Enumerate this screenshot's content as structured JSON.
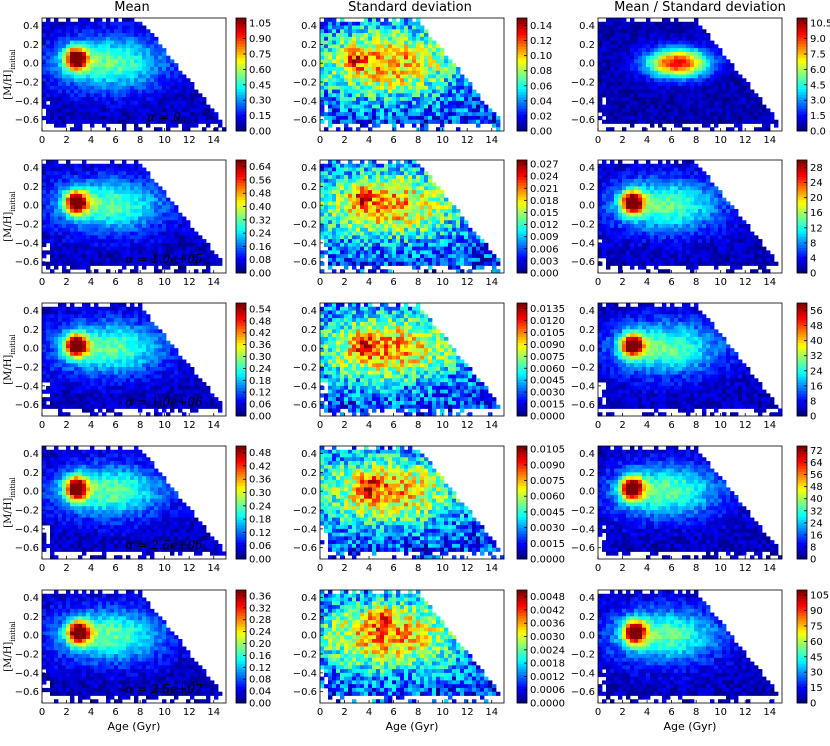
{
  "figure": {
    "column_titles": [
      "Mean",
      "Standard deviation",
      "Mean / Standard deviation"
    ],
    "row_alpha_labels": [
      "α = 0",
      "α = 1.0e+05",
      "α = 1.0e+06",
      "α = 2.5e+06",
      "α = 2.5e+07"
    ],
    "ylabel": "[M/H]",
    "ylabel_sub": "initial",
    "xlabel": "Age (Gyr)",
    "x_ticks": [
      "0",
      "2",
      "4",
      "6",
      "8",
      "10",
      "12",
      "14"
    ],
    "y_ticks": [
      "0.4",
      "0.2",
      "0.0",
      "−0.2",
      "−0.4",
      "−0.6"
    ]
  },
  "chart_data": [
    {
      "type": "heatmap",
      "row": 0,
      "col": 0,
      "title": "Mean",
      "panel_label": "α = 0",
      "xlabel": "",
      "ylabel": "[M/H]initial",
      "xlim": [
        0,
        15
      ],
      "ylim": [
        -0.72,
        0.48
      ],
      "colorbar_ticks": [
        "0.00",
        "0.15",
        "0.30",
        "0.45",
        "0.60",
        "0.75",
        "0.90",
        "1.05"
      ],
      "colorbar_max": 1.1,
      "colormap": "jet",
      "peak_age": 2.8,
      "peak_mh": 0.05
    },
    {
      "type": "heatmap",
      "row": 0,
      "col": 1,
      "title": "Standard deviation",
      "panel_label": "",
      "xlim": [
        0,
        15
      ],
      "ylim": [
        -0.72,
        0.48
      ],
      "colorbar_ticks": [
        "0.00",
        "0.02",
        "0.04",
        "0.06",
        "0.08",
        "0.10",
        "0.12",
        "0.14"
      ],
      "colorbar_max": 0.15,
      "colormap": "jet",
      "peak_age": 2.8,
      "peak_mh": 0.05
    },
    {
      "type": "heatmap",
      "row": 0,
      "col": 2,
      "title": "Mean / Standard deviation",
      "panel_label": "",
      "xlim": [
        0,
        15
      ],
      "ylim": [
        -0.72,
        0.48
      ],
      "colorbar_ticks": [
        "0.0",
        "1.5",
        "3.0",
        "4.5",
        "6.0",
        "7.5",
        "9.0",
        "10.5"
      ],
      "colorbar_max": 11.0,
      "colormap": "jet",
      "peak_age": 6.5,
      "peak_mh": 0.05
    },
    {
      "type": "heatmap",
      "row": 1,
      "col": 0,
      "panel_label": "α = 1.0e+05",
      "xlim": [
        0,
        15
      ],
      "ylim": [
        -0.72,
        0.48
      ],
      "colorbar_ticks": [
        "0.00",
        "0.08",
        "0.16",
        "0.24",
        "0.32",
        "0.40",
        "0.48",
        "0.56",
        "0.64"
      ],
      "colorbar_max": 0.68,
      "colormap": "jet",
      "peak_age": 2.8,
      "peak_mh": 0.03
    },
    {
      "type": "heatmap",
      "row": 1,
      "col": 1,
      "panel_label": "",
      "xlim": [
        0,
        15
      ],
      "ylim": [
        -0.72,
        0.48
      ],
      "colorbar_ticks": [
        "0.000",
        "0.003",
        "0.006",
        "0.009",
        "0.012",
        "0.015",
        "0.018",
        "0.021",
        "0.024",
        "0.027"
      ],
      "colorbar_max": 0.028,
      "colormap": "jet",
      "peak_age": 3.5,
      "peak_mh": 0.1
    },
    {
      "type": "heatmap",
      "row": 1,
      "col": 2,
      "panel_label": "",
      "xlim": [
        0,
        15
      ],
      "ylim": [
        -0.72,
        0.48
      ],
      "colorbar_ticks": [
        "0",
        "4",
        "8",
        "12",
        "16",
        "20",
        "24",
        "28"
      ],
      "colorbar_max": 30,
      "colormap": "jet",
      "peak_age": 2.8,
      "peak_mh": 0.03
    },
    {
      "type": "heatmap",
      "row": 2,
      "col": 0,
      "panel_label": "α = 1.0e+06",
      "xlim": [
        0,
        15
      ],
      "ylim": [
        -0.72,
        0.48
      ],
      "colorbar_ticks": [
        "0.00",
        "0.06",
        "0.12",
        "0.18",
        "0.24",
        "0.30",
        "0.36",
        "0.42",
        "0.48",
        "0.54"
      ],
      "colorbar_max": 0.57,
      "colormap": "jet",
      "peak_age": 2.8,
      "peak_mh": 0.03
    },
    {
      "type": "heatmap",
      "row": 2,
      "col": 1,
      "panel_label": "",
      "xlim": [
        0,
        15
      ],
      "ylim": [
        -0.72,
        0.48
      ],
      "colorbar_ticks": [
        "0.0000",
        "0.0015",
        "0.0030",
        "0.0045",
        "0.0060",
        "0.0075",
        "0.0090",
        "0.0105",
        "0.0120",
        "0.0135"
      ],
      "colorbar_max": 0.0142,
      "colormap": "jet",
      "peak_age": 3.5,
      "peak_mh": 0.05
    },
    {
      "type": "heatmap",
      "row": 2,
      "col": 2,
      "panel_label": "",
      "xlim": [
        0,
        15
      ],
      "ylim": [
        -0.72,
        0.48
      ],
      "colorbar_ticks": [
        "0",
        "8",
        "16",
        "24",
        "32",
        "40",
        "48",
        "56"
      ],
      "colorbar_max": 60,
      "colormap": "jet",
      "peak_age": 2.8,
      "peak_mh": 0.03
    },
    {
      "type": "heatmap",
      "row": 3,
      "col": 0,
      "panel_label": "α = 2.5e+06",
      "xlim": [
        0,
        15
      ],
      "ylim": [
        -0.72,
        0.48
      ],
      "colorbar_ticks": [
        "0.00",
        "0.06",
        "0.12",
        "0.18",
        "0.24",
        "0.30",
        "0.36",
        "0.42",
        "0.48"
      ],
      "colorbar_max": 0.51,
      "colormap": "jet",
      "peak_age": 2.8,
      "peak_mh": 0.03
    },
    {
      "type": "heatmap",
      "row": 3,
      "col": 1,
      "panel_label": "",
      "xlim": [
        0,
        15
      ],
      "ylim": [
        -0.72,
        0.48
      ],
      "colorbar_ticks": [
        "0.0000",
        "0.0015",
        "0.0030",
        "0.0045",
        "0.0060",
        "0.0075",
        "0.0090",
        "0.0105"
      ],
      "colorbar_max": 0.0108,
      "colormap": "jet",
      "peak_age": 4.0,
      "peak_mh": 0.05
    },
    {
      "type": "heatmap",
      "row": 3,
      "col": 2,
      "panel_label": "",
      "xlim": [
        0,
        15
      ],
      "ylim": [
        -0.72,
        0.48
      ],
      "colorbar_ticks": [
        "0",
        "8",
        "16",
        "24",
        "32",
        "40",
        "48",
        "56",
        "64",
        "72"
      ],
      "colorbar_max": 75,
      "colormap": "jet",
      "peak_age": 2.8,
      "peak_mh": 0.03
    },
    {
      "type": "heatmap",
      "row": 4,
      "col": 0,
      "panel_label": "α = 2.5e+07",
      "xlabel": "Age (Gyr)",
      "xlim": [
        0,
        15
      ],
      "ylim": [
        -0.72,
        0.48
      ],
      "colorbar_ticks": [
        "0.00",
        "0.04",
        "0.08",
        "0.12",
        "0.16",
        "0.20",
        "0.24",
        "0.28",
        "0.32",
        "0.36"
      ],
      "colorbar_max": 0.38,
      "colormap": "jet",
      "peak_age": 3.0,
      "peak_mh": 0.03
    },
    {
      "type": "heatmap",
      "row": 4,
      "col": 1,
      "panel_label": "",
      "xlabel": "Age (Gyr)",
      "xlim": [
        0,
        15
      ],
      "ylim": [
        -0.72,
        0.48
      ],
      "colorbar_ticks": [
        "0.0000",
        "0.0006",
        "0.0012",
        "0.0018",
        "0.0024",
        "0.0030",
        "0.0036",
        "0.0042",
        "0.0048"
      ],
      "colorbar_max": 0.0051,
      "colormap": "jet",
      "peak_age": 5.0,
      "peak_mh": 0.2
    },
    {
      "type": "heatmap",
      "row": 4,
      "col": 2,
      "panel_label": "",
      "xlabel": "Age (Gyr)",
      "xlim": [
        0,
        15
      ],
      "ylim": [
        -0.72,
        0.48
      ],
      "colorbar_ticks": [
        "0",
        "15",
        "30",
        "45",
        "60",
        "75",
        "90",
        "105"
      ],
      "colorbar_max": 110,
      "colormap": "jet",
      "peak_age": 3.0,
      "peak_mh": 0.03
    }
  ]
}
